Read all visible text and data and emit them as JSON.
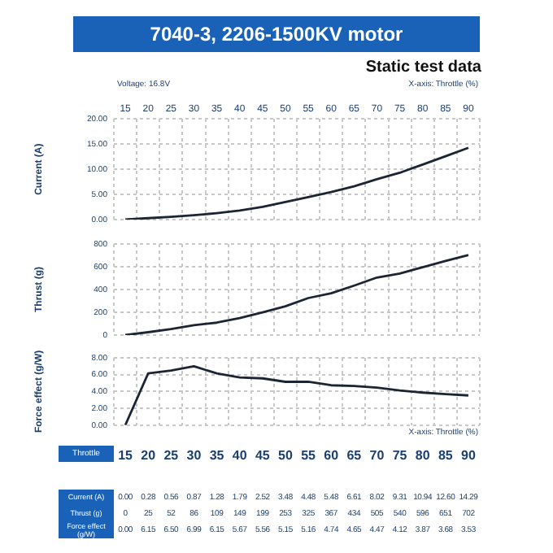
{
  "chart_data": [
    {
      "type": "line",
      "title": "7040-3, 2206-1500KV motor",
      "subtitle": "Static test data",
      "xlabel": "X-axis: Throttle (%)",
      "ylabel": "Current (A)",
      "annotations": [
        "Voltage: 16.8V"
      ],
      "categories": [
        "15",
        "20",
        "25",
        "30",
        "35",
        "40",
        "45",
        "50",
        "55",
        "60",
        "65",
        "70",
        "75",
        "80",
        "85",
        "90"
      ],
      "values": [
        0,
        0.28,
        0.56,
        0.87,
        1.28,
        1.79,
        2.52,
        3.48,
        4.48,
        5.48,
        6.61,
        8.02,
        9.31,
        10.94,
        12.6,
        14.29
      ],
      "value_labels": [
        "0.00",
        "0.28",
        "0.56",
        "0.87",
        "1.28",
        "1.79",
        "2.52",
        "3.48",
        "4.48",
        "5.48",
        "6.61",
        "8.02",
        "9.31",
        "10.94",
        "12.60",
        "14.29"
      ],
      "color": "#1c2533",
      "ylim": [
        0,
        20
      ],
      "yticks": [
        {
          "value": 0,
          "label": "0.00"
        },
        {
          "value": 5,
          "label": "5.00"
        },
        {
          "value": 10,
          "label": "10.00"
        },
        {
          "value": 15,
          "label": "15.00"
        },
        {
          "value": 20,
          "label": "20.00"
        }
      ],
      "grid": true
    },
    {
      "type": "line",
      "ylabel": "Thrust (g)",
      "categories": [
        "15",
        "20",
        "25",
        "30",
        "35",
        "40",
        "45",
        "50",
        "55",
        "60",
        "65",
        "70",
        "75",
        "80",
        "85",
        "90"
      ],
      "values": [
        0,
        25,
        52,
        86,
        109,
        149,
        199,
        253,
        325,
        367,
        434,
        505,
        540,
        596,
        651,
        702
      ],
      "value_labels": [
        "0",
        "25",
        "52",
        "86",
        "109",
        "149",
        "199",
        "253",
        "325",
        "367",
        "434",
        "505",
        "540",
        "596",
        "651",
        "702"
      ],
      "color": "#1c2533",
      "ylim": [
        0,
        800
      ],
      "yticks": [
        0,
        200,
        400,
        600,
        800
      ],
      "grid": true,
      "tick_labels": "y"
    },
    {
      "type": "line",
      "xlabel": "X-axis: Throttle (%)",
      "ylabel": "Force effect (g/W)",
      "annotations": [
        "Throttle"
      ],
      "categories": [
        "15",
        "20",
        "25",
        "30",
        "35",
        "40",
        "45",
        "50",
        "55",
        "60",
        "65",
        "70",
        "75",
        "80",
        "85",
        "90"
      ],
      "values": [
        0,
        6.15,
        6.5,
        6.99,
        6.15,
        5.67,
        5.56,
        5.15,
        5.16,
        4.74,
        4.65,
        4.47,
        4.12,
        3.87,
        3.68,
        3.53
      ],
      "value_labels": [
        "0.00",
        "6.15",
        "6.50",
        "6.99",
        "6.15",
        "5.67",
        "5.56",
        "5.15",
        "5.16",
        "4.74",
        "4.65",
        "4.47",
        "4.12",
        "3.87",
        "3.68",
        "3.53"
      ],
      "color": "#1c2533",
      "ylim": [
        0,
        8
      ],
      "yticks": [
        {
          "value": 0,
          "label": "0.00"
        },
        {
          "value": 2,
          "label": "2.00"
        },
        {
          "value": 4,
          "label": "4.00"
        },
        {
          "value": 6,
          "label": "6.00"
        },
        {
          "value": 8,
          "label": "8.00"
        }
      ],
      "grid": true
    }
  ]
}
